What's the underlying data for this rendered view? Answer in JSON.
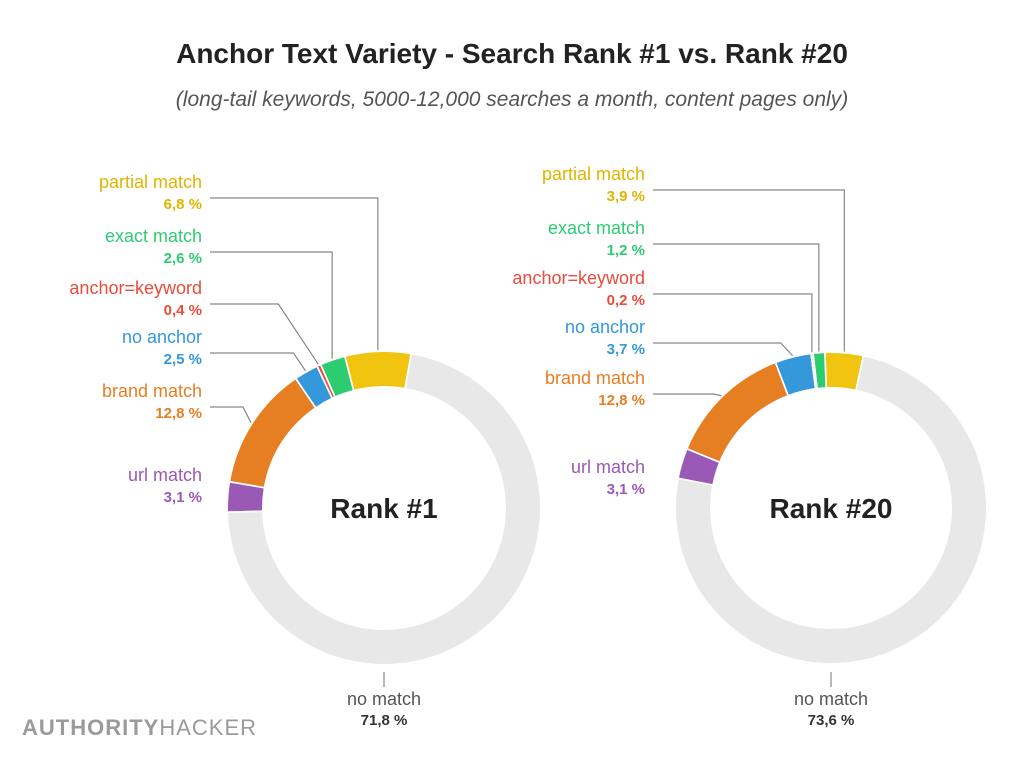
{
  "header": {
    "title": "Anchor Text Variety - Search Rank #1 vs. Rank #20",
    "subtitle": "(long-tail keywords, 5000-12,000 searches a month, content pages only)"
  },
  "brand": {
    "part1": "AUTHORITY",
    "part2": "HACKER"
  },
  "chart_data": [
    {
      "type": "pie",
      "variant": "donut",
      "center_label": "Rank #1",
      "slices": [
        {
          "label": "no match",
          "value_text": "71,8 %",
          "value": 71.8,
          "color": "#e8e8e8"
        },
        {
          "label": "url match",
          "value_text": "3,1 %",
          "value": 3.1,
          "color": "#9b59b6"
        },
        {
          "label": "brand match",
          "value_text": "12,8 %",
          "value": 12.8,
          "color": "#e67e22"
        },
        {
          "label": "no anchor",
          "value_text": "2,5 %",
          "value": 2.5,
          "color": "#3498db"
        },
        {
          "label": "anchor=keyword",
          "value_text": "0,4 %",
          "value": 0.4,
          "color": "#e74c3c"
        },
        {
          "label": "exact match",
          "value_text": "2,6 %",
          "value": 2.6,
          "color": "#2ecc71"
        },
        {
          "label": "partial match",
          "value_text": "6,8 %",
          "value": 6.8,
          "color": "#f1c40f"
        }
      ]
    },
    {
      "type": "pie",
      "variant": "donut",
      "center_label": "Rank #20",
      "slices": [
        {
          "label": "no match",
          "value_text": "73,6 %",
          "value": 73.6,
          "color": "#e8e8e8"
        },
        {
          "label": "url match",
          "value_text": "3,1 %",
          "value": 3.1,
          "color": "#9b59b6"
        },
        {
          "label": "brand match",
          "value_text": "12,8 %",
          "value": 12.8,
          "color": "#e67e22"
        },
        {
          "label": "no anchor",
          "value_text": "3,7 %",
          "value": 3.7,
          "color": "#3498db"
        },
        {
          "label": "anchor=keyword",
          "value_text": "0,2 %",
          "value": 0.2,
          "color": "#e74c3c"
        },
        {
          "label": "exact match",
          "value_text": "1,2 %",
          "value": 1.2,
          "color": "#2ecc71"
        },
        {
          "label": "partial match",
          "value_text": "3,9 %",
          "value": 3.9,
          "color": "#f1c40f"
        }
      ]
    }
  ]
}
